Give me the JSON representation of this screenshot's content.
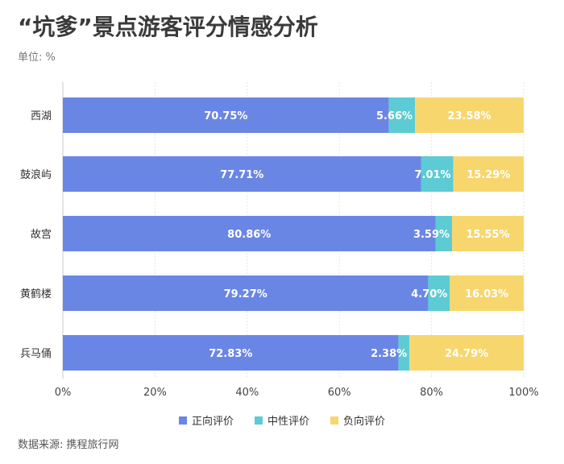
{
  "title": "“坑爹”景点游客评分情感分析",
  "unit_label": "单位: %",
  "source": "数据来源: 携程旅行网",
  "colors": {
    "positive": "#6a86e5",
    "neutral": "#5dcbd3",
    "negative": "#f8d66e"
  },
  "chart_data": {
    "type": "bar",
    "orientation": "horizontal",
    "stacked": true,
    "categories": [
      "西湖",
      "鼓浪屿",
      "故宫",
      "黄鹤楼",
      "兵马俑"
    ],
    "series": [
      {
        "name": "正向评价",
        "values": [
          70.75,
          77.71,
          80.86,
          79.27,
          72.83
        ],
        "labels": [
          "70.75%",
          "77.71%",
          "80.86%",
          "79.27%",
          "72.83%"
        ]
      },
      {
        "name": "中性评价",
        "values": [
          5.66,
          7.01,
          3.59,
          4.7,
          2.38
        ],
        "labels": [
          "5.66%",
          "7.01%",
          "3.59%",
          "4.70%",
          "2.38%"
        ]
      },
      {
        "name": "负向评价",
        "values": [
          23.58,
          15.29,
          15.55,
          16.03,
          24.79
        ],
        "labels": [
          "23.58%",
          "15.29%",
          "15.55%",
          "16.03%",
          "24.79%"
        ]
      }
    ],
    "xlim": [
      0,
      100
    ],
    "x_ticks": [
      "0%",
      "20%",
      "40%",
      "60%",
      "80%",
      "100%"
    ],
    "legend_position": "bottom",
    "grid": true
  }
}
